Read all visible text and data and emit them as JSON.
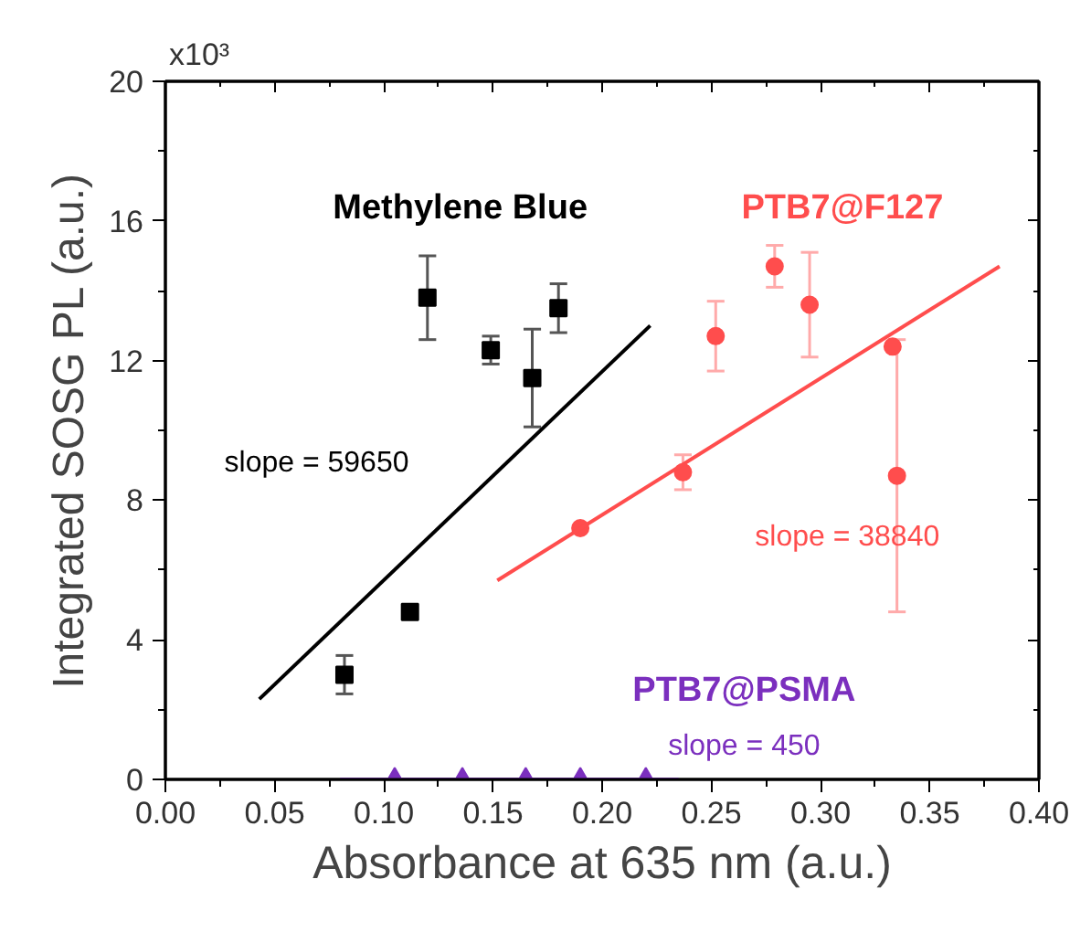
{
  "chart_data": {
    "type": "scatter",
    "xlabel": "Absorbance at 635 nm (a.u.)",
    "ylabel": "Integrated SOSG PL (a.u.)",
    "xlim": [
      0,
      0.4
    ],
    "xticks": [
      {
        "value": 0,
        "label": "0.00"
      },
      0.05,
      {
        "value": 0.1,
        "label": "0.10"
      },
      0.15,
      {
        "value": 0.2,
        "label": "0.20"
      },
      0.25,
      {
        "value": 0.3,
        "label": "0.30"
      },
      0.35,
      {
        "value": 0.4,
        "label": "0.40"
      }
    ],
    "ylim": [
      0,
      20
    ],
    "yticks": [
      0,
      4,
      8,
      12,
      16,
      20
    ],
    "grid": false,
    "annotations": [
      "slope = 59650",
      "slope = 38840",
      "slope = 450",
      "x10³"
    ],
    "series": [
      {
        "name": "Methylene Blue",
        "type": "scatter",
        "marker": "square",
        "color": "#000000",
        "x": [
          0.082,
          0.112,
          0.12,
          0.149,
          0.168,
          0.18
        ],
        "values": [
          3.0,
          4.8,
          13.8,
          12.3,
          11.5,
          13.5
        ],
        "errors": [
          0.55,
          null,
          1.2,
          0.4,
          1.4,
          0.7
        ]
      },
      {
        "name": "PTB7@F127",
        "type": "scatter",
        "marker": "circle",
        "color": "#ff4d4d",
        "x": [
          0.19,
          0.237,
          0.252,
          0.279,
          0.295,
          0.333,
          0.335
        ],
        "values": [
          7.2,
          8.8,
          12.7,
          14.7,
          13.6,
          12.4,
          8.7
        ],
        "errors": [
          null,
          0.5,
          1.0,
          0.6,
          1.5,
          null,
          3.9
        ]
      },
      {
        "name": "PTB7@PSMA",
        "type": "scatter",
        "marker": "triangle",
        "color": "#7b2fbe",
        "x": [
          0.105,
          0.136,
          0.165,
          0.19,
          0.22
        ],
        "values": [
          0,
          0,
          0,
          0,
          0
        ]
      },
      {
        "type": "line",
        "marker": "none",
        "color": "#000000",
        "x": [
          0.043,
          0.222
        ],
        "values": [
          2.3,
          13.0
        ]
      },
      {
        "type": "line",
        "marker": "none",
        "color": "#ff4d4d",
        "x": [
          0.152,
          0.382
        ],
        "values": [
          5.7,
          14.7
        ]
      },
      {
        "type": "line",
        "marker": "none",
        "color": "#7b2fbe",
        "x": [
          0.08,
          0.235
        ],
        "values": [
          0,
          0
        ]
      }
    ]
  }
}
